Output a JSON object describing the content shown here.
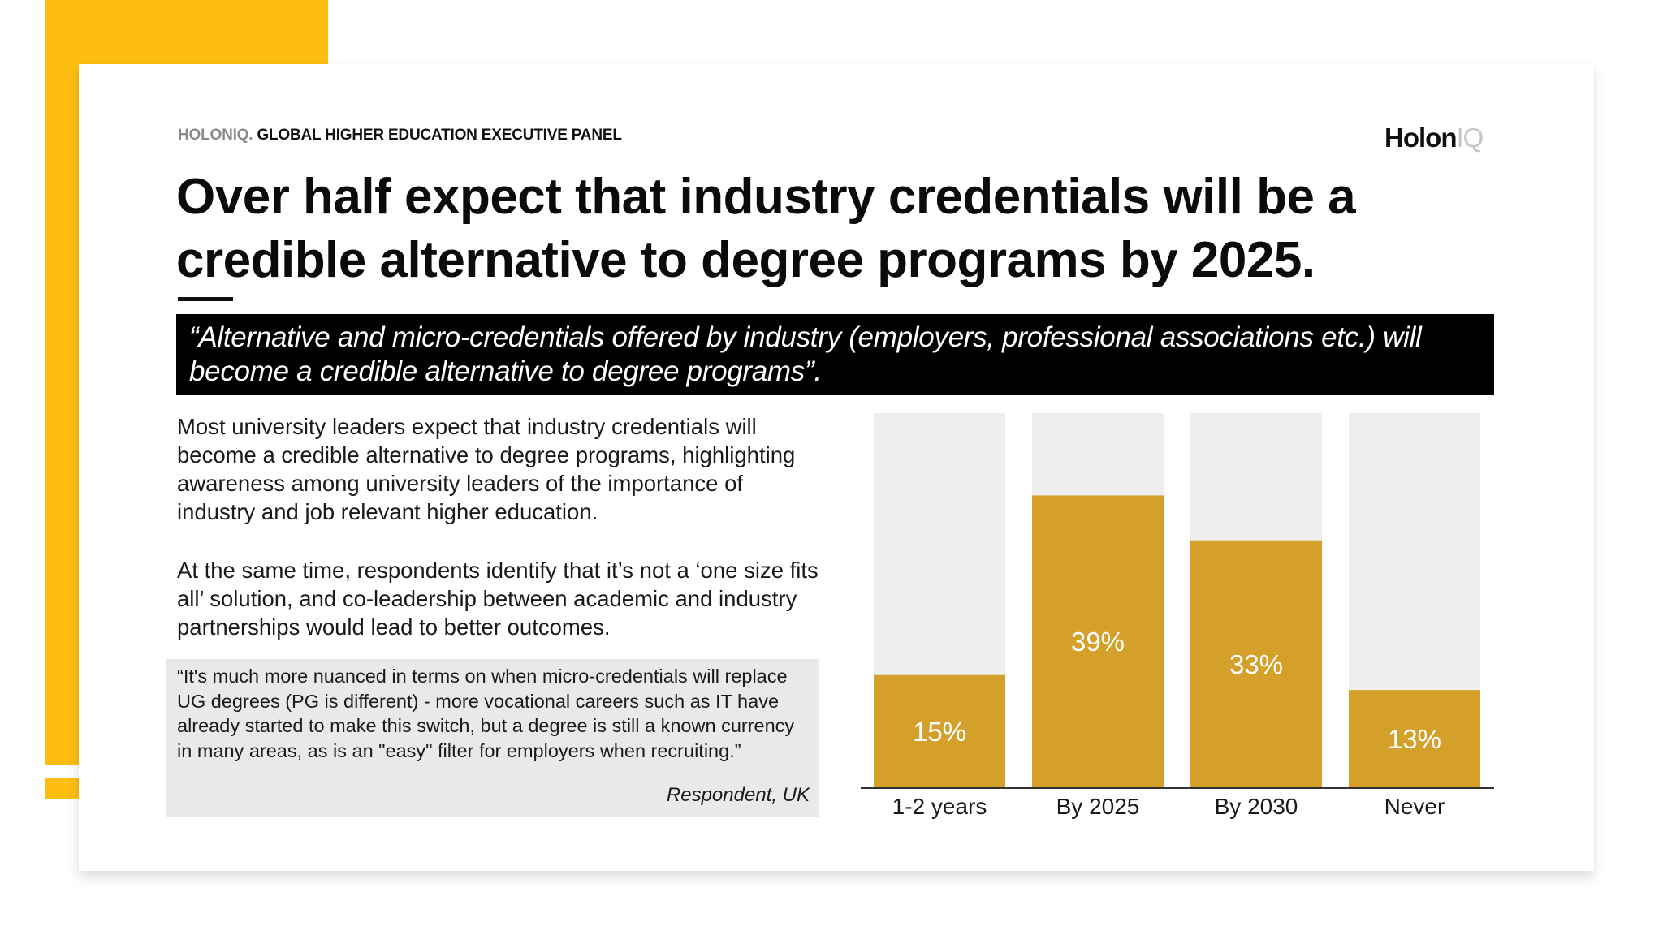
{
  "header": {
    "brand": "HOLONIQ.",
    "panel": "GLOBAL HIGHER EDUCATION EXECUTIVE PANEL",
    "logo_main": "Holon",
    "logo_suffix": "IQ"
  },
  "title": "Over half expect that industry credentials will be a credible alternative to degree programs by 2025.",
  "statement": "“Alternative and micro-credentials offered by industry (employers, professional associations etc.) will become a credible alternative to degree programs”.",
  "body": {
    "paragraph1": "Most university leaders expect that industry credentials will become a credible alternative to degree programs, highlighting awareness among university leaders of the importance of industry and job relevant higher education.",
    "paragraph2": "At the same time, respondents identify that it’s not a ‘one size fits all’ solution, and co-leadership between academic and industry partnerships would lead to better outcomes."
  },
  "quote": {
    "text": "“It's much more nuanced in terms on when micro-credentials will replace UG degrees (PG is different)  - more vocational careers such as IT have already started to make this switch, but a degree is still a known currency in many areas, as is an \"easy\" filter for employers when recruiting.”",
    "attribution": "Respondent, UK"
  },
  "colors": {
    "accent": "#FDBE0F",
    "bar": "#D4A02A",
    "bar_track": "#EEEEEE"
  },
  "chart_data": {
    "type": "bar",
    "title": "",
    "xlabel": "",
    "ylabel": "",
    "categories": [
      "1-2 years",
      "By 2025",
      "By 2030",
      "Never"
    ],
    "values": [
      15,
      39,
      33,
      13
    ],
    "value_labels": [
      "15%",
      "39%",
      "33%",
      "13%"
    ],
    "unit": "%",
    "ylim": [
      0,
      50
    ],
    "grid": false,
    "legend": "none"
  }
}
